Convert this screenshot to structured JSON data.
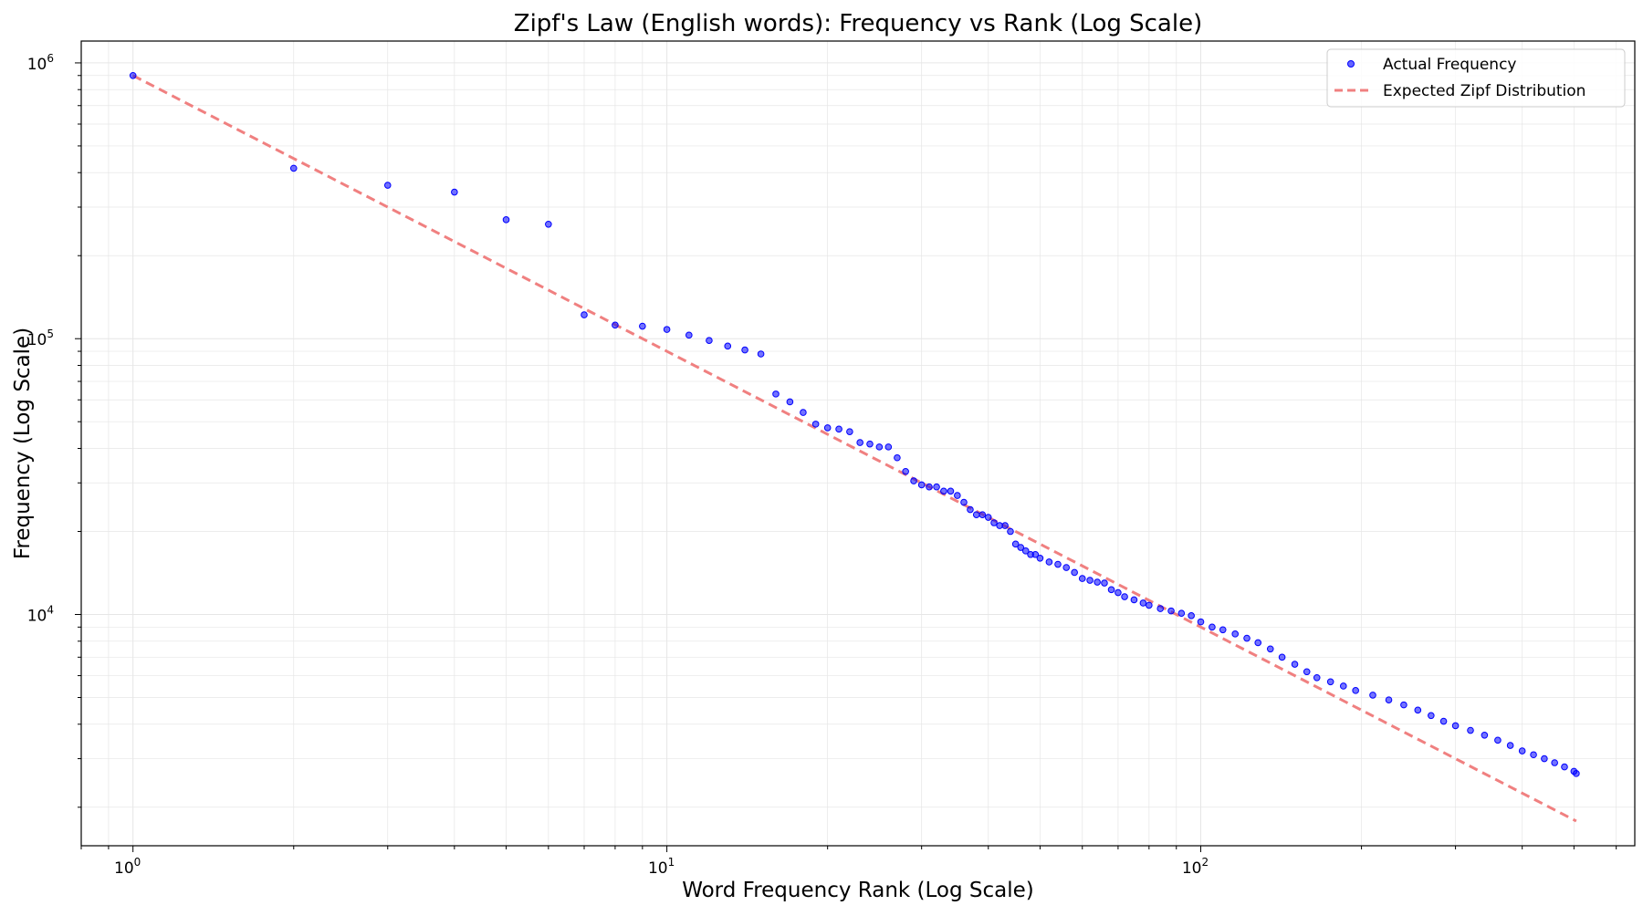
{
  "chart_data": {
    "type": "scatter",
    "title": "Zipf's Law (English words): Frequency vs Rank (Log Scale)",
    "xlabel": "Word Frequency Rank (Log Scale)",
    "ylabel": "Frequency (Log Scale)",
    "xscale": "log",
    "yscale": "log",
    "xlim": [
      0.8,
      650
    ],
    "ylim": [
      1450,
      1200000
    ],
    "grid": true,
    "legend_position": "top-right",
    "x_tick_labels": [
      {
        "base": "10",
        "exp": "0",
        "value": 1
      },
      {
        "base": "10",
        "exp": "1",
        "value": 10
      },
      {
        "base": "10",
        "exp": "2",
        "value": 100
      }
    ],
    "y_tick_labels": [
      {
        "base": "10",
        "exp": "4",
        "value": 10000
      },
      {
        "base": "10",
        "exp": "5",
        "value": 100000
      },
      {
        "base": "10",
        "exp": "6",
        "value": 1000000
      }
    ],
    "series": [
      {
        "name": "Actual Frequency",
        "kind": "scatter",
        "color": "#0000ff",
        "points": [
          [
            1,
            900000
          ],
          [
            2,
            415000
          ],
          [
            3,
            360000
          ],
          [
            4,
            340000
          ],
          [
            5,
            270000
          ],
          [
            6,
            260000
          ],
          [
            7,
            122000
          ],
          [
            8,
            112000
          ],
          [
            9,
            111000
          ],
          [
            10,
            108000
          ],
          [
            11,
            103000
          ],
          [
            12,
            98500
          ],
          [
            13,
            94000
          ],
          [
            14,
            91000
          ],
          [
            15,
            88000
          ],
          [
            16,
            63000
          ],
          [
            17,
            59000
          ],
          [
            18,
            54000
          ],
          [
            19,
            49000
          ],
          [
            20,
            47500
          ],
          [
            21,
            47000
          ],
          [
            22,
            46000
          ],
          [
            23,
            42000
          ],
          [
            24,
            41500
          ],
          [
            25,
            40500
          ],
          [
            26,
            40500
          ],
          [
            27,
            37000
          ],
          [
            28,
            33000
          ],
          [
            29,
            30500
          ],
          [
            30,
            29500
          ],
          [
            31,
            29000
          ],
          [
            32,
            29000
          ],
          [
            33,
            28000
          ],
          [
            34,
            28000
          ],
          [
            35,
            27000
          ],
          [
            36,
            25500
          ],
          [
            37,
            24000
          ],
          [
            38,
            23000
          ],
          [
            39,
            23000
          ],
          [
            40,
            22500
          ],
          [
            41,
            21500
          ],
          [
            42,
            21000
          ],
          [
            43,
            21000
          ],
          [
            44,
            20000
          ],
          [
            45,
            18000
          ],
          [
            46,
            17500
          ],
          [
            47,
            17000
          ],
          [
            48,
            16500
          ],
          [
            49,
            16500
          ],
          [
            50,
            16000
          ],
          [
            52,
            15500
          ],
          [
            54,
            15200
          ],
          [
            56,
            14800
          ],
          [
            58,
            14200
          ],
          [
            60,
            13500
          ],
          [
            62,
            13300
          ],
          [
            64,
            13100
          ],
          [
            66,
            13000
          ],
          [
            68,
            12300
          ],
          [
            70,
            12000
          ],
          [
            72,
            11600
          ],
          [
            75,
            11300
          ],
          [
            78,
            11000
          ],
          [
            80,
            10800
          ],
          [
            84,
            10500
          ],
          [
            88,
            10300
          ],
          [
            92,
            10100
          ],
          [
            96,
            9900
          ],
          [
            100,
            9400
          ],
          [
            105,
            9000
          ],
          [
            110,
            8800
          ],
          [
            116,
            8500
          ],
          [
            122,
            8200
          ],
          [
            128,
            7900
          ],
          [
            135,
            7500
          ],
          [
            142,
            7000
          ],
          [
            150,
            6600
          ],
          [
            158,
            6200
          ],
          [
            165,
            5900
          ],
          [
            175,
            5700
          ],
          [
            185,
            5500
          ],
          [
            195,
            5300
          ],
          [
            210,
            5100
          ],
          [
            225,
            4900
          ],
          [
            240,
            4700
          ],
          [
            255,
            4500
          ],
          [
            270,
            4300
          ],
          [
            285,
            4100
          ],
          [
            300,
            3950
          ],
          [
            320,
            3800
          ],
          [
            340,
            3650
          ],
          [
            360,
            3500
          ],
          [
            380,
            3350
          ],
          [
            400,
            3200
          ],
          [
            420,
            3100
          ],
          [
            440,
            3000
          ],
          [
            460,
            2900
          ],
          [
            480,
            2800
          ],
          [
            500,
            2700
          ],
          [
            505,
            2650
          ]
        ]
      },
      {
        "name": "Expected Zipf Distribution",
        "kind": "line",
        "style": "dashed",
        "color": "#f08080",
        "points": [
          [
            1,
            900000
          ],
          [
            505,
            1782
          ]
        ]
      }
    ]
  }
}
